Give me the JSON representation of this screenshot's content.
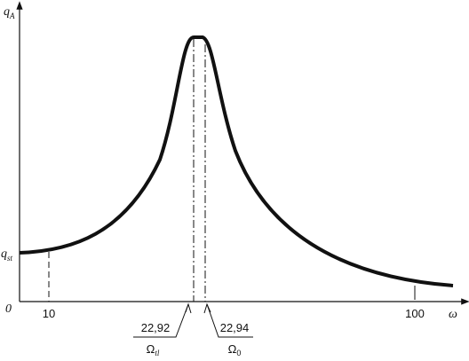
{
  "y_axis": {
    "symbol": "q",
    "subscript": "A"
  },
  "y_level": {
    "symbol": "q",
    "subscript": "st"
  },
  "origin": "0",
  "x_axis": {
    "symbol": "ω",
    "ticks": [
      "10",
      "100"
    ]
  },
  "markers": [
    {
      "value": "22,92",
      "symbol": "Ω",
      "subscript": "tl"
    },
    {
      "value": "22,94",
      "symbol": "Ω",
      "subscript": "0"
    }
  ]
}
